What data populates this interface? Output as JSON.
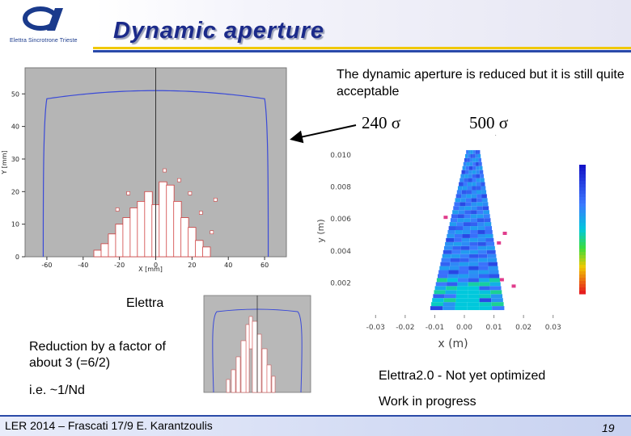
{
  "header": {
    "logo_text": "Elettra Sincrotrone Trieste",
    "title": "Dynamic aperture"
  },
  "description": "The  dynamic aperture is reduced but it is still quite acceptable",
  "labels": {
    "sigma_240": "240 σ",
    "sigma_500": "500 σ"
  },
  "left_panel": {
    "caption": "Elettra",
    "reduction_text": "Reduction by a factor of about 3 (=6/2)",
    "ie_text": "i.e. ~1/Nd"
  },
  "right_panel": {
    "elettra2_text": "Elettra2.0 - Not yet optimized",
    "work_text": "Work in progress"
  },
  "footer": {
    "left": "LER 2014 – Frascati 17/9   E. Karantzoulis",
    "page": "19"
  },
  "colors": {
    "title": "#1b2a8a",
    "rule_yellow": "#f0c800",
    "rule_blue": "#2a4aa8",
    "plot_gray": "#b5b5b5",
    "boundary_blue": "#3a4ad8",
    "boundary_red": "#d04040"
  },
  "chart_data": [
    {
      "type": "scatter",
      "name_ref": "elettra-240-sigma",
      "xlabel": "X [mm]",
      "ylabel": "Y [mm]",
      "x_ticks": [
        "-60",
        "-40",
        "-20",
        "0",
        "20",
        "40",
        "60"
      ],
      "y_ticks": [
        "0",
        "10",
        "20",
        "30",
        "40",
        "50"
      ],
      "xlim": [
        -72,
        72
      ],
      "ylim": [
        0,
        58
      ],
      "grid": false
    },
    {
      "type": "scatter",
      "name_ref": "elettra2-500-sigma",
      "xlabel": "x (m)",
      "ylabel": "y (m)",
      "x_ticks": [
        "-0.03",
        "-0.02",
        "-0.01",
        "0.00",
        "0.01",
        "0.02",
        "0.03"
      ],
      "y_ticks": [
        "0.002",
        "0.004",
        "0.006",
        "0.008",
        "0.010"
      ],
      "xlim": [
        -0.035,
        0.035
      ],
      "ylim": [
        0,
        0.0106
      ],
      "grid": false
    }
  ]
}
